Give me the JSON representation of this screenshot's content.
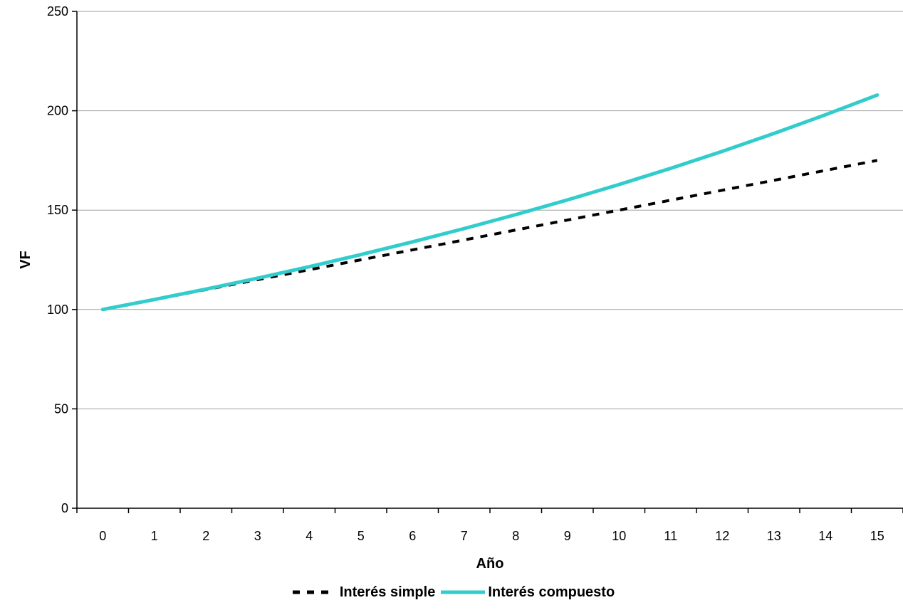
{
  "chart_data": {
    "type": "line",
    "title": "",
    "xlabel": "Año",
    "ylabel": "VF",
    "categories": [
      "0",
      "1",
      "2",
      "3",
      "4",
      "5",
      "6",
      "7",
      "8",
      "9",
      "10",
      "11",
      "12",
      "13",
      "14",
      "15"
    ],
    "ylim": [
      0,
      250
    ],
    "yticks": [
      "0",
      "50",
      "100",
      "150",
      "200",
      "250"
    ],
    "grid": "horizontal",
    "legend_position": "bottom",
    "series": [
      {
        "name": "Interés simple",
        "style": "dashed",
        "color": "#000000",
        "values": [
          100,
          105,
          110,
          115,
          120,
          125,
          130,
          135,
          140,
          145,
          150,
          155,
          160,
          165,
          170,
          175
        ]
      },
      {
        "name": "Interés compuesto",
        "style": "solid",
        "color": "#33CCCC",
        "values": [
          100,
          105,
          110.25,
          115.76,
          121.55,
          127.63,
          134.01,
          140.71,
          147.75,
          155.13,
          162.89,
          171.03,
          179.59,
          188.56,
          197.99,
          207.89
        ]
      }
    ]
  }
}
